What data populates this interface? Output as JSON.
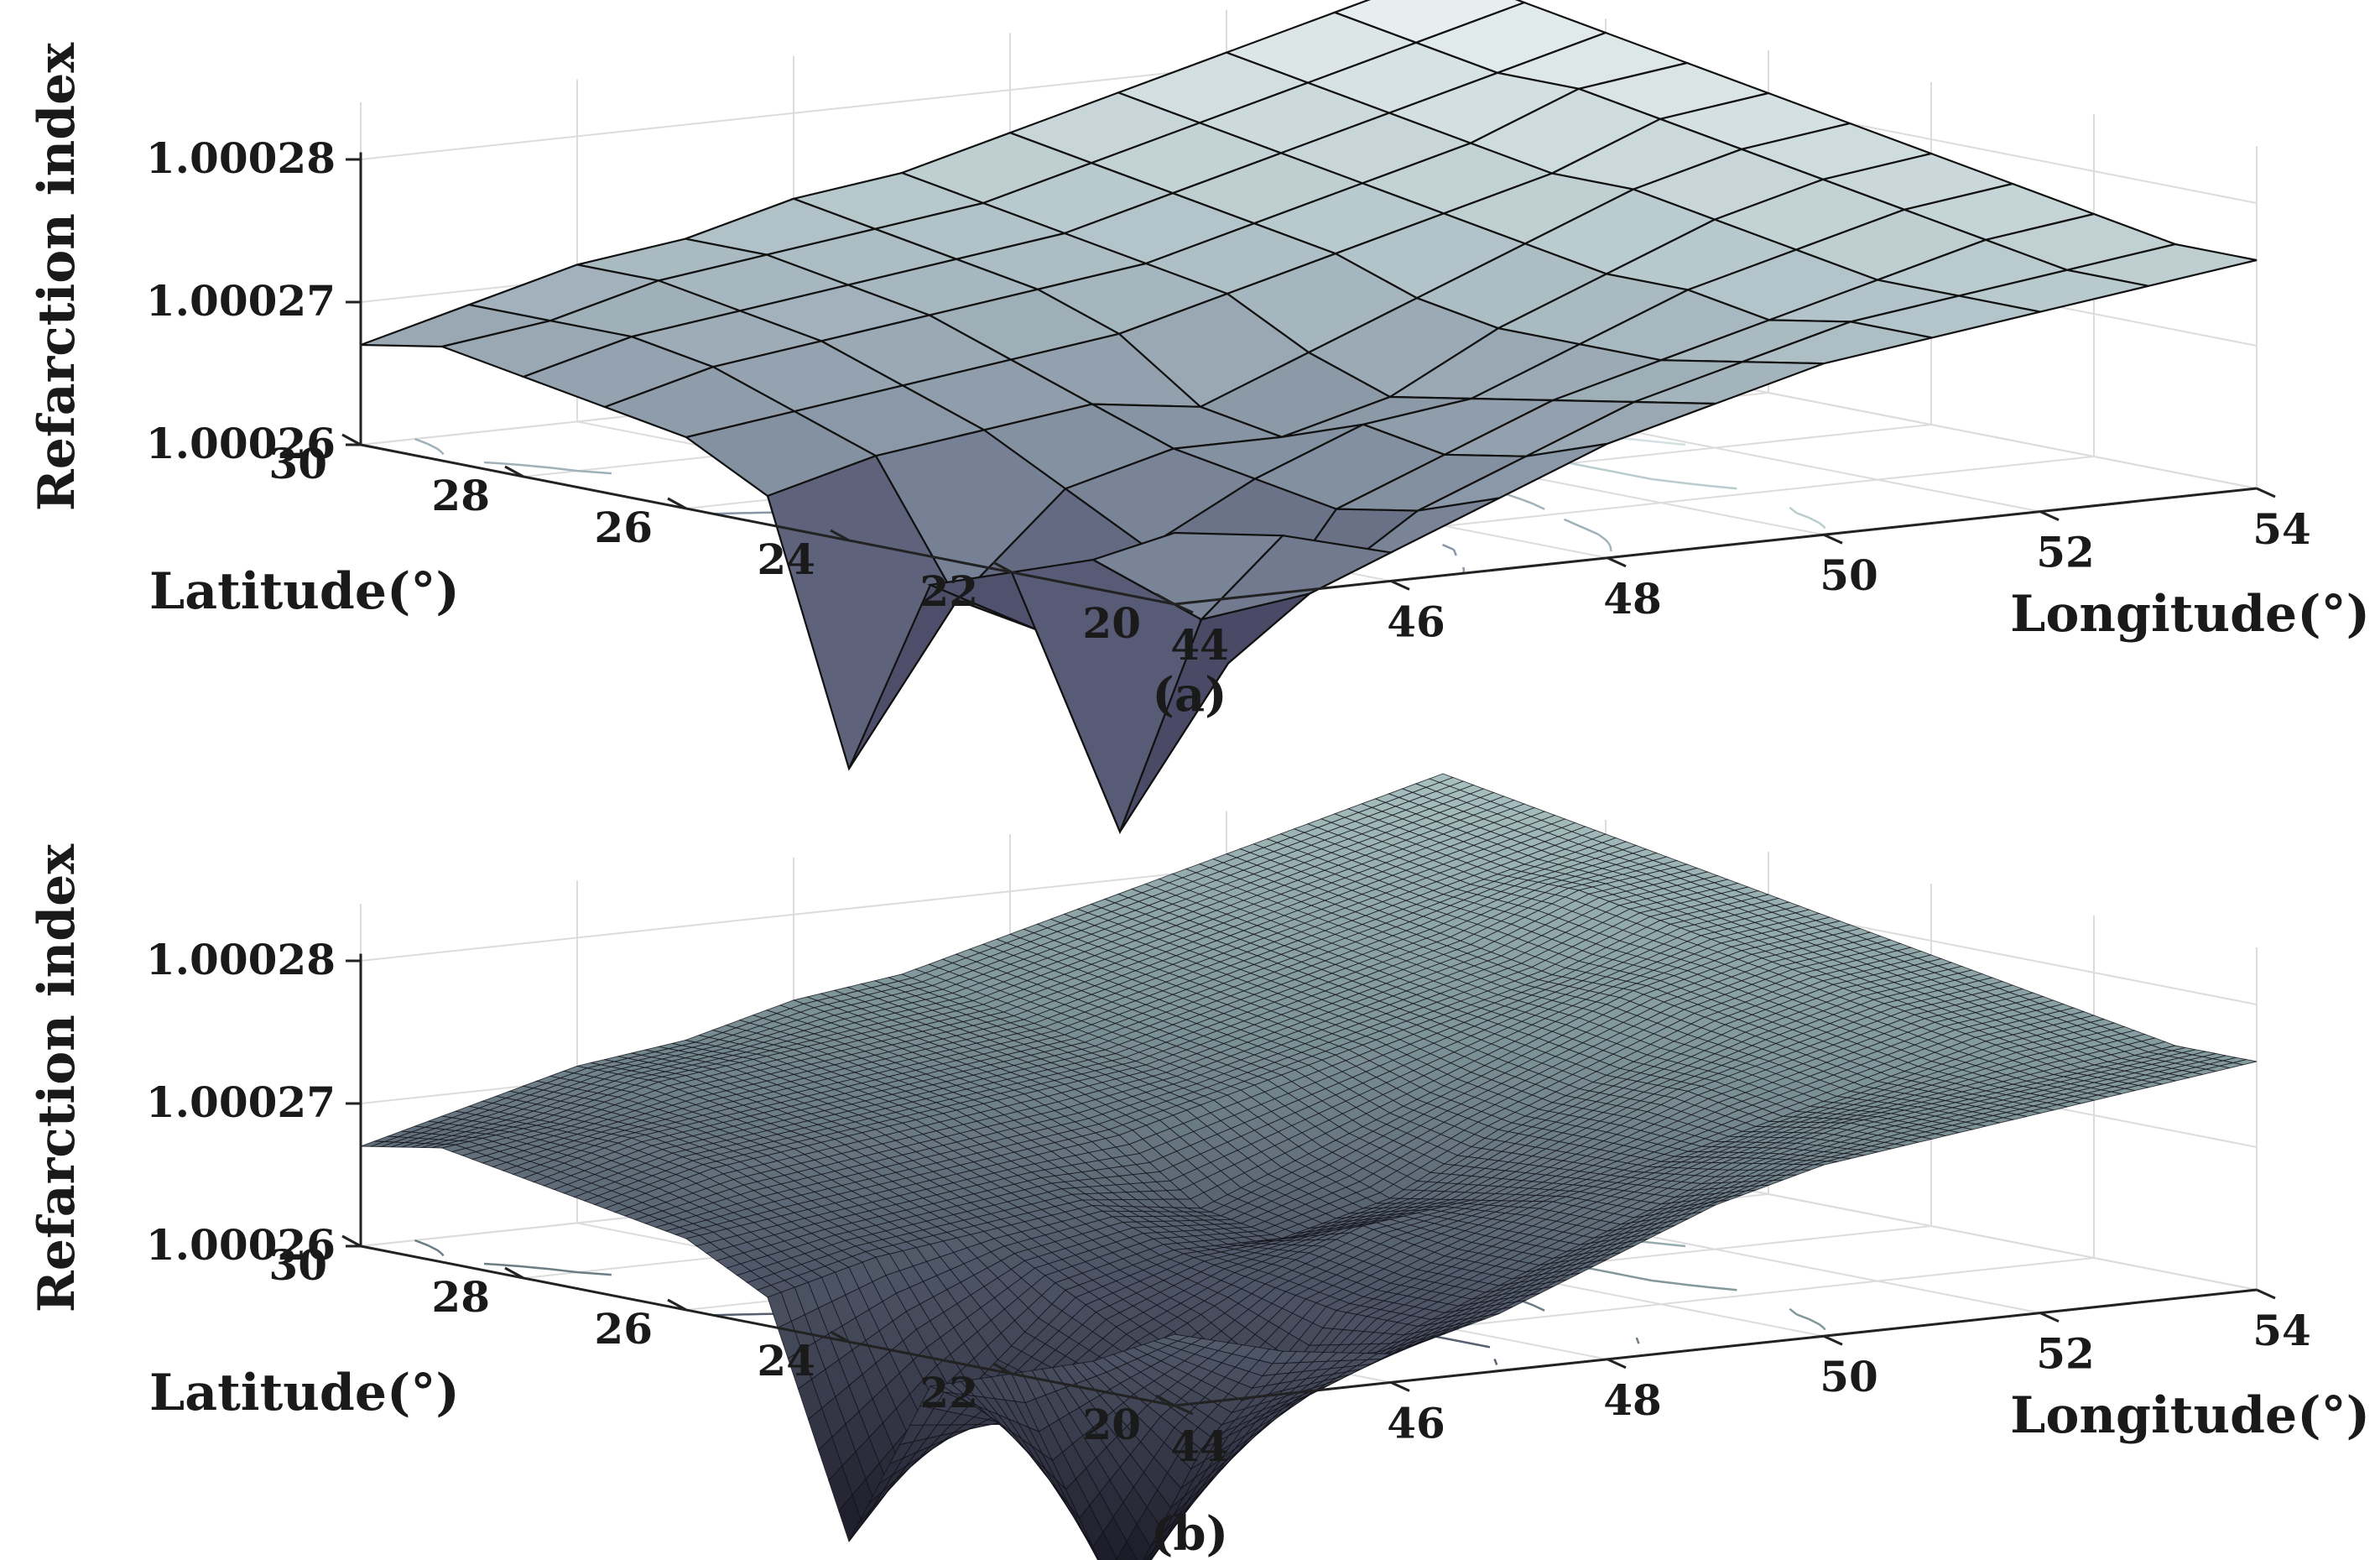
{
  "figure": {
    "panels": [
      {
        "caption": "(a)"
      },
      {
        "caption": "(b)"
      }
    ]
  },
  "chart_data": [
    {
      "type": "surface3d",
      "caption": "(a)",
      "zlabel": "Refarction index",
      "xlabel": "Longitude(°)",
      "ylabel": "Latitude(°)",
      "x_ticks": [
        "44",
        "46",
        "48",
        "50",
        "52",
        "54"
      ],
      "y_ticks": [
        "20",
        "22",
        "24",
        "26",
        "28",
        "30"
      ],
      "z_ticks": [
        "1.00026",
        "1.00027",
        "1.00028"
      ],
      "xlim": [
        44,
        54
      ],
      "ylim": [
        20,
        30
      ],
      "zlim": [
        1.00026,
        1.00028
      ],
      "grid": true,
      "contour_projection": true,
      "shading": "faceted",
      "colormap": [
        "#0c0c14",
        "#4a4a66",
        "#7e8a9c",
        "#b6c8cc",
        "#eef4f4"
      ],
      "x": [
        44,
        45,
        46,
        47,
        48,
        49,
        50,
        51,
        52,
        53,
        54
      ],
      "y": [
        20,
        21,
        22,
        23,
        24,
        25,
        26,
        27,
        28,
        29,
        30
      ],
      "z": [
        [
          1.000265,
          1.000264,
          1.000262,
          1.000265,
          1.000268,
          1.00027,
          1.000272,
          1.000273,
          1.000274,
          1.000275,
          1.000276
        ],
        [
          1.000262,
          1.000257,
          1.000258,
          1.000263,
          1.000266,
          1.000269,
          1.000271,
          1.000273,
          1.000274,
          1.000275,
          1.000276
        ],
        [
          1.00026,
          1.000241,
          1.000252,
          1.000262,
          1.000265,
          1.000268,
          1.00027,
          1.000272,
          1.000274,
          1.000276,
          1.000277
        ],
        [
          1.000258,
          1.000254,
          1.000259,
          1.000263,
          1.000266,
          1.000267,
          1.00027,
          1.000273,
          1.000275,
          1.000277,
          1.000278
        ],
        [
          1.000244,
          1.000255,
          1.000262,
          1.000264,
          1.000264,
          1.000266,
          1.00027,
          1.000273,
          1.000276,
          1.000278,
          1.000279
        ],
        [
          1.000262,
          1.000264,
          1.000265,
          1.000266,
          1.000265,
          1.000268,
          1.000271,
          1.000274,
          1.000277,
          1.000279,
          1.00028
        ],
        [
          1.000265,
          1.000266,
          1.000267,
          1.000268,
          1.000269,
          1.000271,
          1.000273,
          1.000275,
          1.000277,
          1.00028,
          1.000281
        ],
        [
          1.000266,
          1.000268,
          1.000269,
          1.00027,
          1.000271,
          1.000272,
          1.000274,
          1.000276,
          1.000278,
          1.000281,
          1.000282
        ],
        [
          1.000267,
          1.000269,
          1.00027,
          1.000271,
          1.000272,
          1.000273,
          1.000275,
          1.000277,
          1.000279,
          1.000281,
          1.000283
        ],
        [
          1.000268,
          1.000269,
          1.000271,
          1.000272,
          1.000273,
          1.000274,
          1.000276,
          1.000278,
          1.00028,
          1.000282,
          1.000284
        ],
        [
          1.000267,
          1.000269,
          1.000271,
          1.000272,
          1.000274,
          1.000275,
          1.000277,
          1.000279,
          1.000281,
          1.000283,
          1.000285
        ]
      ]
    },
    {
      "type": "surface3d",
      "caption": "(b)",
      "zlabel": "Refarction index",
      "xlabel": "Longitude(°)",
      "ylabel": "Latitude(°)",
      "x_ticks": [
        "44",
        "46",
        "48",
        "50",
        "52",
        "54"
      ],
      "y_ticks": [
        "20",
        "22",
        "24",
        "26",
        "28",
        "30"
      ],
      "z_ticks": [
        "1.00026",
        "1.00027",
        "1.00028"
      ],
      "xlim": [
        44,
        54
      ],
      "ylim": [
        20,
        30
      ],
      "zlim": [
        1.00026,
        1.00028
      ],
      "grid": true,
      "contour_projection": true,
      "shading": "mesh",
      "colormap": [
        "#0c0c14",
        "#2e2e3e",
        "#4e5566",
        "#7e9498",
        "#a8c0c0"
      ],
      "x_step": 0.125,
      "y_step": 0.125,
      "x": [
        44,
        45,
        46,
        47,
        48,
        49,
        50,
        51,
        52,
        53,
        54
      ],
      "y": [
        20,
        21,
        22,
        23,
        24,
        25,
        26,
        27,
        28,
        29,
        30
      ],
      "z": [
        [
          1.000265,
          1.000263,
          1.000262,
          1.000264,
          1.000267,
          1.00027,
          1.000272,
          1.000273,
          1.000274,
          1.000275,
          1.000276
        ],
        [
          1.000262,
          1.000255,
          1.000258,
          1.000262,
          1.000265,
          1.000268,
          1.000271,
          1.000273,
          1.000274,
          1.000275,
          1.000276
        ],
        [
          1.00026,
          1.000243,
          1.000253,
          1.000262,
          1.000265,
          1.000268,
          1.00027,
          1.000272,
          1.000274,
          1.000276,
          1.000277
        ],
        [
          1.000258,
          1.000254,
          1.000259,
          1.000263,
          1.000266,
          1.000267,
          1.00027,
          1.000273,
          1.000275,
          1.000277,
          1.000278
        ],
        [
          1.000246,
          1.000255,
          1.000262,
          1.000264,
          1.000264,
          1.000266,
          1.00027,
          1.000273,
          1.000276,
          1.000278,
          1.000279
        ],
        [
          1.000262,
          1.000264,
          1.000265,
          1.000266,
          1.000265,
          1.000268,
          1.000271,
          1.000274,
          1.000277,
          1.000279,
          1.00028
        ],
        [
          1.000265,
          1.000266,
          1.000267,
          1.000268,
          1.000269,
          1.000271,
          1.000273,
          1.000275,
          1.000277,
          1.00028,
          1.000281
        ],
        [
          1.000266,
          1.000268,
          1.000269,
          1.00027,
          1.000271,
          1.000272,
          1.000274,
          1.000276,
          1.000278,
          1.000281,
          1.000282
        ],
        [
          1.000267,
          1.000269,
          1.00027,
          1.000271,
          1.000272,
          1.000273,
          1.000275,
          1.000277,
          1.000279,
          1.000281,
          1.000283
        ],
        [
          1.000268,
          1.000269,
          1.000271,
          1.000272,
          1.000273,
          1.000274,
          1.000276,
          1.000278,
          1.00028,
          1.000282,
          1.000284
        ],
        [
          1.000267,
          1.000269,
          1.000271,
          1.000272,
          1.000274,
          1.000275,
          1.000277,
          1.000279,
          1.000281,
          1.000283,
          1.000285
        ]
      ]
    }
  ]
}
